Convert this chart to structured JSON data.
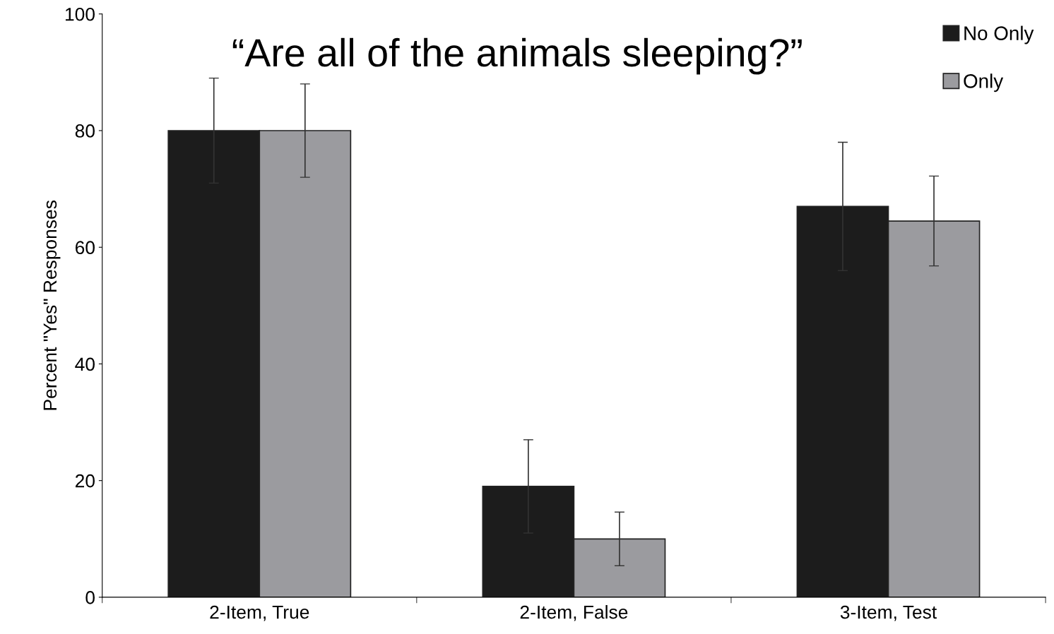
{
  "chart_data": {
    "type": "bar",
    "title": "“Are all of the animals sleeping?”",
    "ylabel": "Percent \"Yes\" Responses",
    "categories": [
      "2-Item, True",
      "2-Item, False",
      "3-Item, Test"
    ],
    "series": [
      {
        "name": "No Only",
        "color": "#1c1c1c",
        "values": [
          80,
          19,
          67
        ],
        "errors": [
          9,
          8,
          11
        ]
      },
      {
        "name": "Only",
        "color": "#9b9b9f",
        "values": [
          80,
          10,
          64.5
        ],
        "errors": [
          8,
          4.6,
          7.7
        ]
      }
    ],
    "ylim": [
      0,
      100
    ],
    "yticks": [
      0,
      20,
      40,
      60,
      80,
      100
    ],
    "legend": "top right",
    "grid": false
  }
}
